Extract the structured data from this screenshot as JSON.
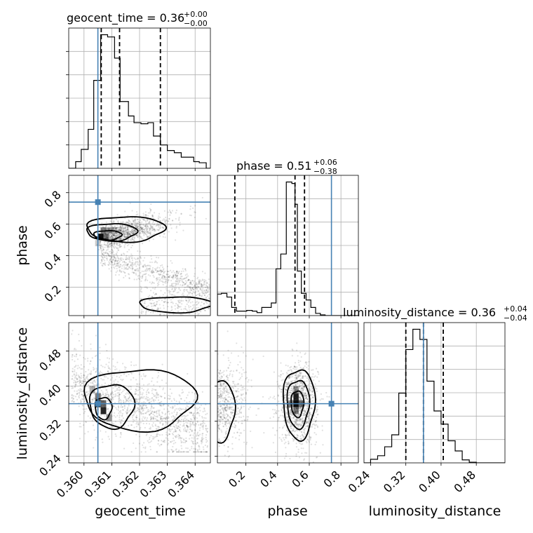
{
  "chart_data": {
    "type": "corner",
    "parameters": [
      "geocent_time",
      "phase",
      "luminosity_distance"
    ],
    "truths": {
      "geocent_time": 0.3605,
      "phase": 0.74,
      "luminosity_distance": 0.36
    },
    "titles": [
      {
        "param": "geocent_time",
        "name": "geocent_time",
        "value": "0.36",
        "plus": "+0.00",
        "minus": "−0.00"
      },
      {
        "param": "phase",
        "name": "phase",
        "value": "0.51",
        "plus": "+0.06",
        "minus": "−0.38"
      },
      {
        "param": "luminosity_distance",
        "name": "luminosity_distance",
        "value": "0.36",
        "plus": "+0.04",
        "minus": "−0.04"
      }
    ],
    "axes": {
      "geocent_time": {
        "range": [
          0.35945,
          0.36455
        ],
        "ticks": [
          0.36,
          0.361,
          0.362,
          0.363,
          0.364
        ],
        "tick_labels": [
          "0.360",
          "0.361",
          "0.362",
          "0.363",
          "0.364"
        ]
      },
      "phase": {
        "range": [
          0.02,
          0.91
        ],
        "ticks": [
          0.2,
          0.4,
          0.6,
          0.8
        ],
        "tick_labels": [
          "0.2",
          "0.4",
          "0.6",
          "0.8"
        ]
      },
      "luminosity_distance": {
        "range": [
          0.225,
          0.545
        ],
        "ticks": [
          0.24,
          0.32,
          0.4,
          0.48
        ],
        "tick_labels": [
          "0.24",
          "0.32",
          "0.40",
          "0.48"
        ]
      }
    },
    "marginals": {
      "geocent_time": {
        "bin_edges": [
          0.35945,
          0.3597,
          0.3599,
          0.36015,
          0.36035,
          0.3606,
          0.36085,
          0.3611,
          0.3613,
          0.3616,
          0.3618,
          0.36205,
          0.3623,
          0.3625,
          0.36275,
          0.363,
          0.36325,
          0.3635,
          0.3637,
          0.36395,
          0.36415,
          0.3644,
          0.36455
        ],
        "counts": [
          0,
          6,
          17,
          35,
          79,
          120,
          118,
          99,
          60,
          47,
          41,
          40,
          41,
          29,
          21,
          16,
          14,
          10,
          10,
          6,
          5,
          0
        ],
        "quantiles": [
          0.36062,
          0.36128,
          0.36275
        ]
      },
      "phase": {
        "bin_edges": [
          0.02,
          0.045,
          0.08,
          0.11,
          0.14,
          0.17,
          0.205,
          0.24,
          0.27,
          0.3,
          0.33,
          0.36,
          0.39,
          0.42,
          0.455,
          0.49,
          0.51,
          0.525,
          0.55,
          0.58,
          0.61,
          0.64,
          0.67,
          0.7,
          0.73,
          0.76,
          0.79,
          0.82,
          0.85,
          0.88,
          0.91
        ],
        "counts": [
          29,
          30,
          25,
          11,
          6,
          6,
          7,
          6,
          4,
          11,
          11,
          17,
          63,
          83,
          180,
          178,
          150,
          60,
          30,
          21,
          11,
          3,
          1,
          0,
          0,
          0,
          0,
          0,
          0,
          0
        ],
        "quantiles": [
          0.13,
          0.51,
          0.57
        ]
      },
      "luminosity_distance": {
        "bin_edges": [
          0.225,
          0.24,
          0.256,
          0.272,
          0.288,
          0.304,
          0.32,
          0.336,
          0.352,
          0.368,
          0.384,
          0.4,
          0.416,
          0.432,
          0.448,
          0.464,
          0.48,
          0.496,
          0.512,
          0.545
        ],
        "counts": [
          0,
          6,
          12,
          27,
          47,
          117,
          190,
          224,
          207,
          137,
          87,
          65,
          37,
          20,
          5,
          1,
          0,
          0,
          0
        ],
        "quantiles": [
          0.32,
          0.36,
          0.405
        ]
      }
    },
    "grid": true,
    "points_per_panel": 1800
  }
}
